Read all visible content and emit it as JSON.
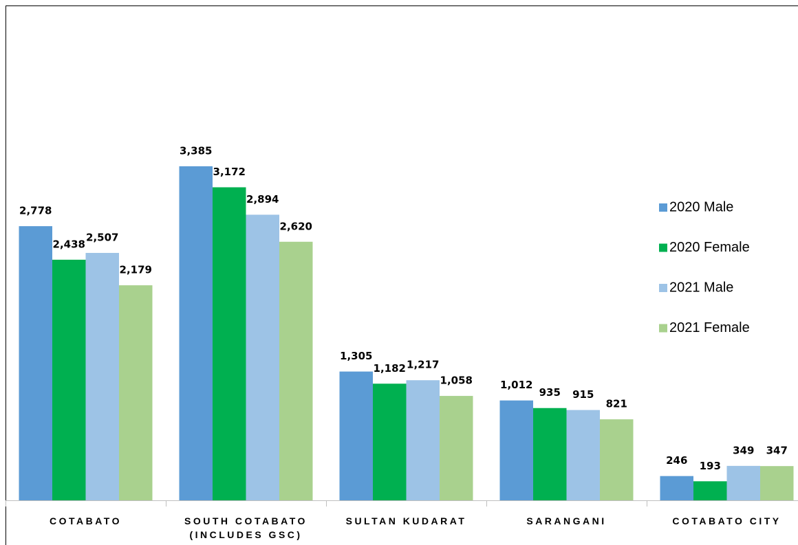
{
  "chart_data": {
    "type": "bar",
    "categories": [
      "COTABATO",
      "SOUTH COTABATO (INCLUDES GSC)",
      "SULTAN KUDARAT",
      "SARANGANI",
      "COTABATO CITY"
    ],
    "series": [
      {
        "name": "2020 Male",
        "color": "#5b9bd5",
        "values": [
          2778,
          3385,
          1305,
          1012,
          246
        ],
        "value_labels": [
          "2,778",
          "3,385",
          "1,305",
          "1,012",
          "246"
        ]
      },
      {
        "name": "2020 Female",
        "color": "#00b050",
        "values": [
          2438,
          3172,
          1182,
          935,
          193
        ],
        "value_labels": [
          "2,438",
          "3,172",
          "1,182",
          "935",
          "193"
        ]
      },
      {
        "name": "2021 Male",
        "color": "#9dc3e6",
        "values": [
          2507,
          2894,
          1217,
          915,
          349
        ],
        "value_labels": [
          "2,507",
          "2,894",
          "1,217",
          "915",
          "349"
        ]
      },
      {
        "name": "2021 Female",
        "color": "#a9d18e",
        "values": [
          2179,
          2620,
          1058,
          821,
          347
        ],
        "value_labels": [
          "2,179",
          "2,620",
          "1,058",
          "821",
          "347"
        ]
      }
    ],
    "ylim": [
      0,
      5000
    ],
    "legend": "right"
  }
}
